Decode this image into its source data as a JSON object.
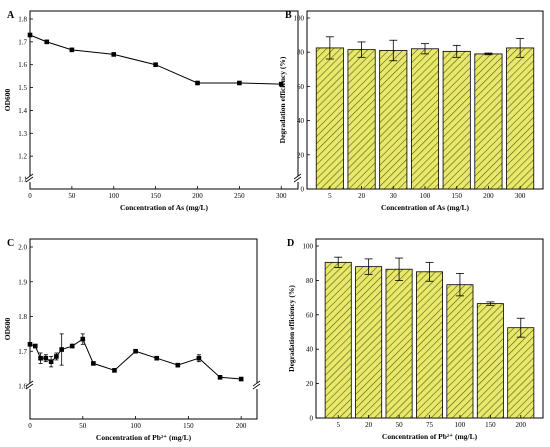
{
  "colors": {
    "bar_fill": "#e8e86a",
    "hatch": "#5a5a1a",
    "line": "#000000",
    "background": "#ffffff"
  },
  "chart_data": [
    {
      "type": "line",
      "panel_label": "A",
      "xlabel": "Concentration of As (mg/L)",
      "ylabel": "OD600",
      "x_ticks": [
        "0",
        "50",
        "100",
        "150",
        "200",
        "250",
        "300"
      ],
      "y_ticks": [
        "1.1",
        "1.2",
        "1.3",
        "1.4",
        "1.5",
        "1.6",
        "1.7",
        "1.8"
      ],
      "xlim": [
        0,
        320
      ],
      "ylim": [
        1.0,
        1.8
      ],
      "axis_break": "y",
      "x": [
        0,
        20,
        50,
        100,
        150,
        200,
        250,
        300
      ],
      "y": [
        1.73,
        1.7,
        1.665,
        1.645,
        1.6,
        1.52,
        1.52,
        1.515
      ],
      "marker": "square"
    },
    {
      "type": "bar",
      "panel_label": "B",
      "xlabel": "Concentration of As (mg/L)",
      "ylabel": "Degradation efficiency (%)",
      "categories": [
        "5",
        "20",
        "30",
        "100",
        "150",
        "200",
        "300"
      ],
      "values": [
        82.5,
        81.5,
        81.0,
        82.0,
        80.5,
        79.0,
        82.5
      ],
      "errors": [
        6.5,
        4.5,
        6.0,
        3.0,
        3.5,
        0.5,
        5.5
      ],
      "y_ticks": [
        "0",
        "20",
        "40",
        "60",
        "80",
        "100"
      ],
      "ylim": [
        0,
        100
      ],
      "hatch": "diagonal"
    },
    {
      "type": "line",
      "panel_label": "C",
      "xlabel": "Concentration of Pb²⁺ (mg/L)",
      "ylabel": "OD600",
      "x_ticks": [
        "0",
        "50",
        "100",
        "150",
        "200"
      ],
      "y_ticks": [
        "1.6",
        "1.7",
        "1.8",
        "1.9",
        "2.0"
      ],
      "xlim": [
        0,
        215
      ],
      "ylim": [
        1.5,
        2.0
      ],
      "axis_break": "y",
      "x": [
        0,
        5,
        10,
        15,
        20,
        25,
        30,
        40,
        50,
        60,
        80,
        100,
        120,
        140,
        160,
        180,
        200
      ],
      "y": [
        1.72,
        1.715,
        1.68,
        1.68,
        1.67,
        1.685,
        1.705,
        1.715,
        1.735,
        1.665,
        1.645,
        1.7,
        1.68,
        1.66,
        1.68,
        1.625,
        1.62
      ],
      "errors": [
        0.0,
        0.005,
        0.015,
        0.01,
        0.015,
        0.01,
        0.045,
        0.005,
        0.015,
        0.0,
        0.0,
        0.0,
        0.0,
        0.0,
        0.01,
        0.0,
        0.0
      ],
      "marker": "square"
    },
    {
      "type": "bar",
      "panel_label": "D",
      "xlabel": "Concentration of Pb²⁺ (mg/L)",
      "ylabel": "Degradation efficiency (%)",
      "categories": [
        "5",
        "20",
        "50",
        "75",
        "100",
        "150",
        "200"
      ],
      "values": [
        90.5,
        88.0,
        86.5,
        85.0,
        77.5,
        66.5,
        52.5
      ],
      "errors": [
        3.0,
        4.5,
        6.5,
        5.5,
        6.5,
        1.0,
        5.5
      ],
      "y_ticks": [
        "0",
        "20",
        "40",
        "60",
        "80",
        "100"
      ],
      "ylim": [
        0,
        100
      ],
      "hatch": "diagonal"
    }
  ]
}
